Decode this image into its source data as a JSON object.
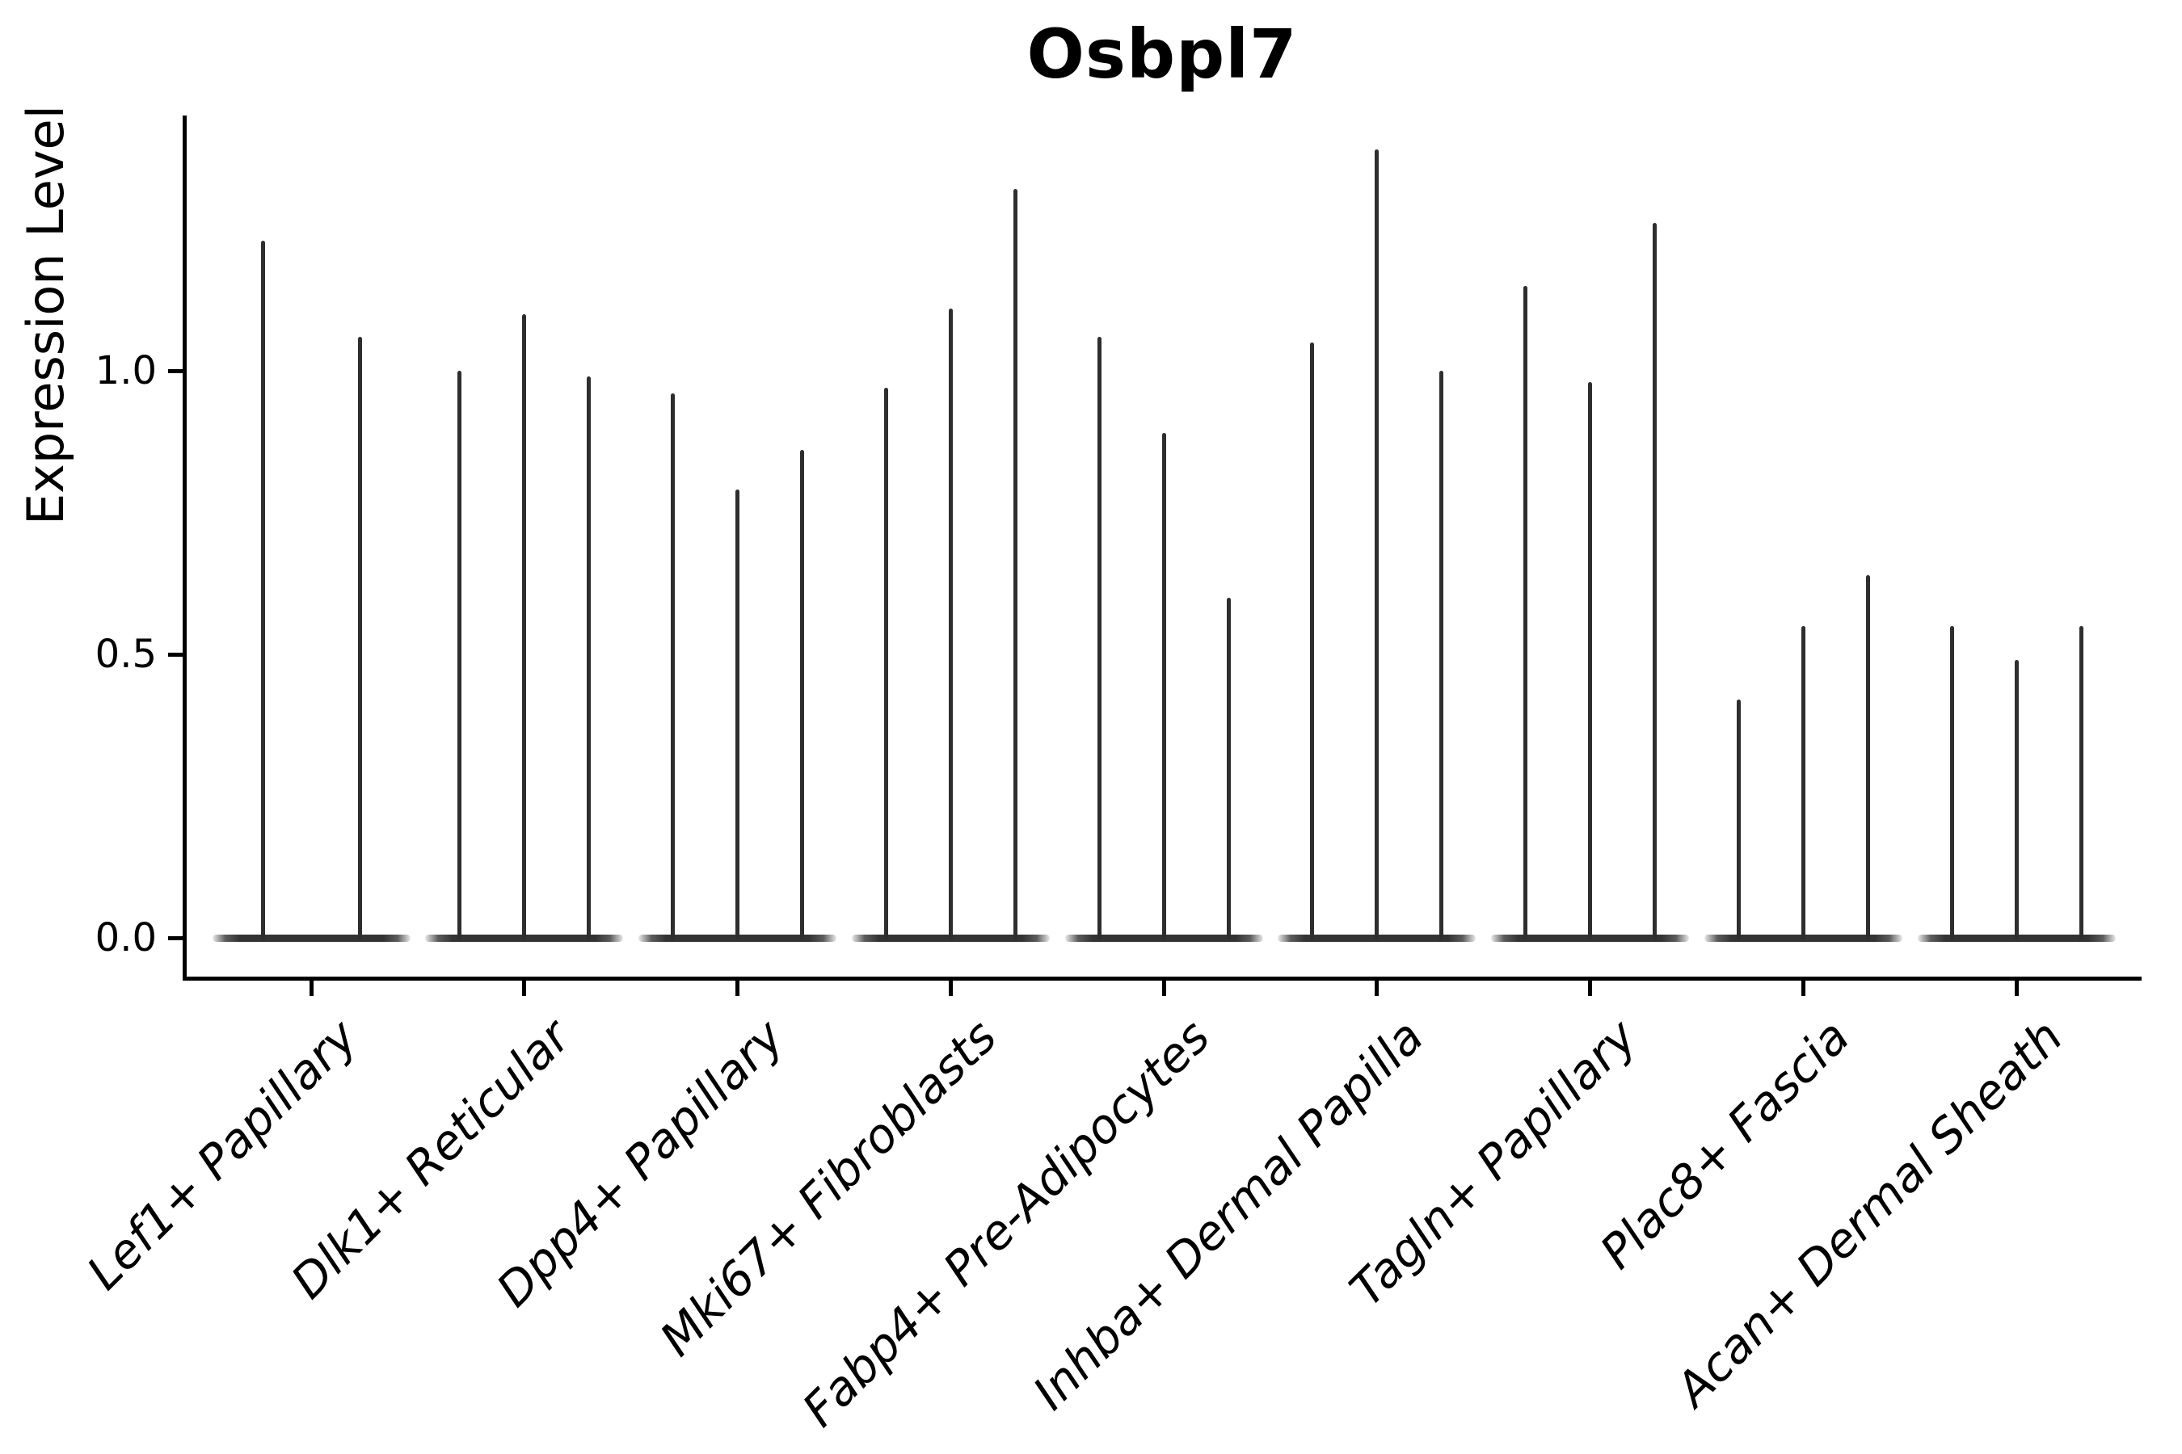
{
  "figure": {
    "background_color": "#ffffff",
    "title": "Osbpl7"
  },
  "chart_data": {
    "type": "violin",
    "title": "Osbpl7",
    "xlabel": "",
    "ylabel": "Expression Level",
    "ylim": [
      -0.07,
      1.45
    ],
    "grid": false,
    "legend": "none",
    "tick_label_rotation": 45,
    "colors": {
      "violin_fill": "#2e2e2e",
      "violin_base": "#333333",
      "axis": "#000000"
    },
    "yticks": [
      {
        "value": 0.0,
        "label": "0.0"
      },
      {
        "value": 0.5,
        "label": "0.5"
      },
      {
        "value": 1.0,
        "label": "1.0"
      }
    ],
    "categories": [
      "Lef1+ Papillary",
      "Dlk1+ Reticular",
      "Dpp4+ Papillary",
      "Mki67+ Fibroblasts",
      "Fabp4+ Pre-Adipocytes",
      "Inhba+ Dermal Papilla",
      "Tagln+ Papillary",
      "Plac8+ Fascia",
      "Acan+ Dermal Sheath"
    ],
    "groups": [
      {
        "category": "Lef1+ Papillary",
        "violin_maxima": [
          1.23,
          1.06
        ]
      },
      {
        "category": "Dlk1+ Reticular",
        "violin_maxima": [
          1.0,
          1.1,
          0.99
        ]
      },
      {
        "category": "Dpp4+ Papillary",
        "violin_maxima": [
          0.96,
          0.79,
          0.86
        ]
      },
      {
        "category": "Mki67+ Fibroblasts",
        "violin_maxima": [
          0.97,
          1.11,
          1.32
        ]
      },
      {
        "category": "Fabp4+ Pre-Adipocytes",
        "violin_maxima": [
          1.06,
          0.89,
          0.6
        ]
      },
      {
        "category": "Inhba+ Dermal Papilla",
        "violin_maxima": [
          1.05,
          1.39,
          1.0
        ]
      },
      {
        "category": "Tagln+ Papillary",
        "violin_maxima": [
          1.15,
          0.98,
          1.26
        ]
      },
      {
        "category": "Plac8+ Fascia",
        "violin_maxima": [
          0.42,
          0.55,
          0.64
        ]
      },
      {
        "category": "Acan+ Dermal Sheath",
        "violin_maxima": [
          0.55,
          0.49,
          0.55
        ]
      }
    ],
    "note": "Each violin's density mass sits at expression 0 (flat dark base band) with a thin spike rising to the listed maximum expression value."
  }
}
